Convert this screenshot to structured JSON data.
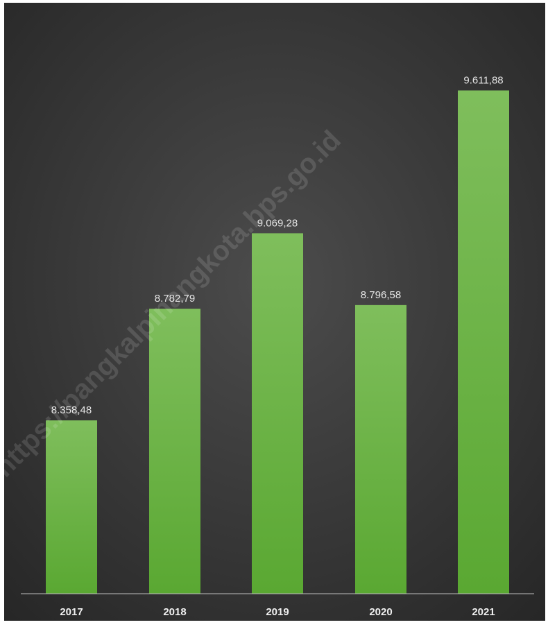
{
  "chart_data": {
    "type": "bar",
    "title": "",
    "xlabel": "",
    "ylabel": "",
    "categories": [
      "2017",
      "2018",
      "2019",
      "2020",
      "2021"
    ],
    "values": [
      8358.48,
      8782.79,
      9069.28,
      8796.58,
      9611.88
    ],
    "value_labels": [
      "8.358,48",
      "8.782,79",
      "9.069,28",
      "8.796,58",
      "9.611,88"
    ],
    "ylim": [
      7700,
      9700
    ],
    "grid": false,
    "legend": "none",
    "colors": {
      "bar_top": "#7fbe5c",
      "bar_bottom": "#5aa832",
      "background_center": "#4c4c4c",
      "background_edge": "#2a2a2a",
      "axis": "#bfbfbf",
      "label_text": "#e6e6e6"
    }
  },
  "watermark": "https://pangkalpinangkota.bps.go.id"
}
